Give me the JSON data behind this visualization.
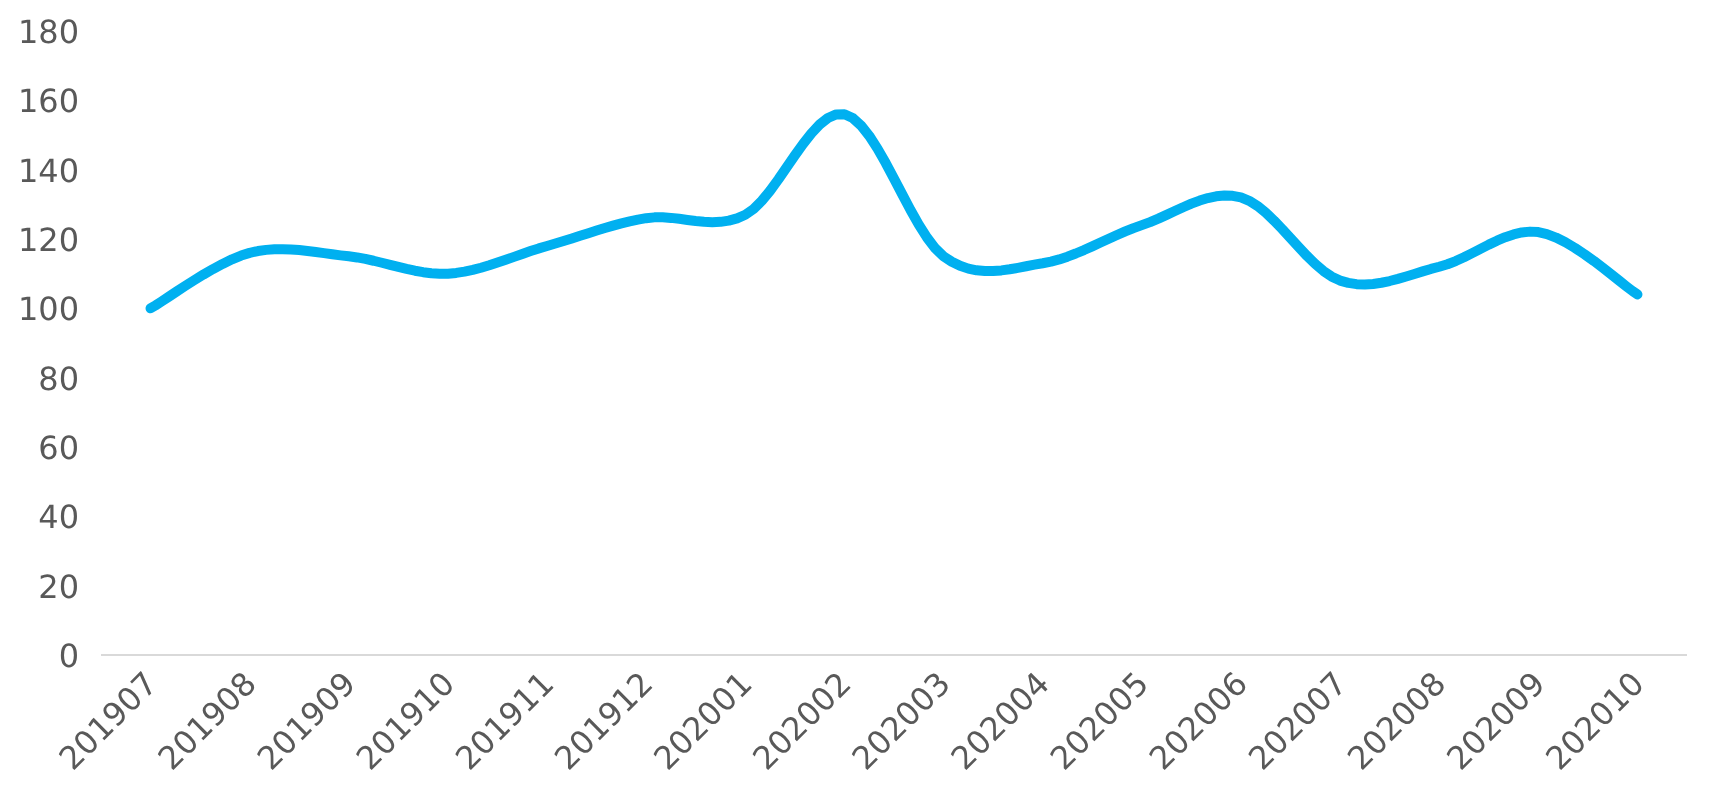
{
  "chart_data": {
    "type": "line",
    "categories": [
      "201907",
      "201908",
      "201909",
      "201910",
      "201911",
      "201912",
      "202001",
      "202002",
      "202003",
      "202004",
      "202005",
      "202006",
      "202007",
      "202008",
      "202009",
      "202010"
    ],
    "series": [
      {
        "color": "#00b0f0",
        "values": [
          100,
          116,
          115,
          110,
          118,
          126,
          127,
          156,
          115,
          113,
          124,
          132,
          108,
          112,
          122,
          104
        ]
      }
    ],
    "ylim": [
      0,
      180
    ],
    "yticks": [
      0,
      20,
      40,
      60,
      80,
      100,
      120,
      140,
      160,
      180
    ],
    "grid": false,
    "marker": "none",
    "line_style": "solid"
  }
}
